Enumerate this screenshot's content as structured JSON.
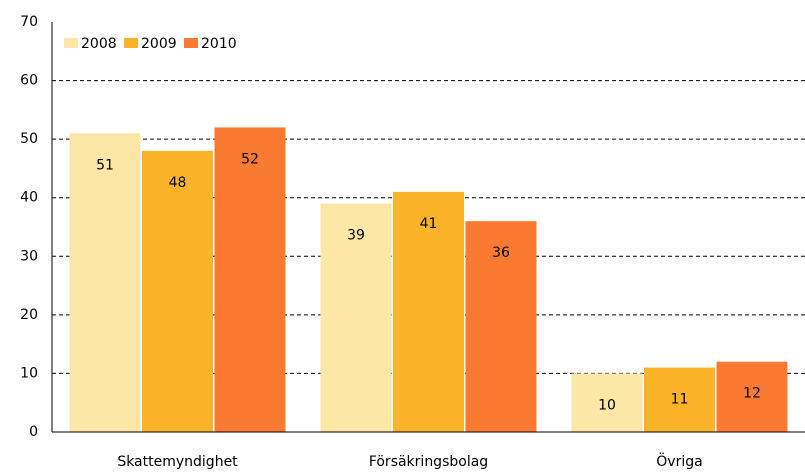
{
  "chart_data": {
    "type": "bar",
    "categories": [
      "Skattemyndighet",
      "Försäkringsbolag",
      "Övriga"
    ],
    "series": [
      {
        "name": "2008",
        "color": "#fde7a6",
        "values": [
          51,
          39,
          10
        ]
      },
      {
        "name": "2009",
        "color": "#fbb42a",
        "values": [
          48,
          41,
          11
        ]
      },
      {
        "name": "2010",
        "color": "#f97a30",
        "values": [
          52,
          36,
          12
        ]
      }
    ],
    "ylim": [
      0,
      70
    ],
    "yticks": [
      0,
      10,
      20,
      30,
      40,
      50,
      60,
      70
    ],
    "grid": true,
    "legend": "top-left"
  }
}
